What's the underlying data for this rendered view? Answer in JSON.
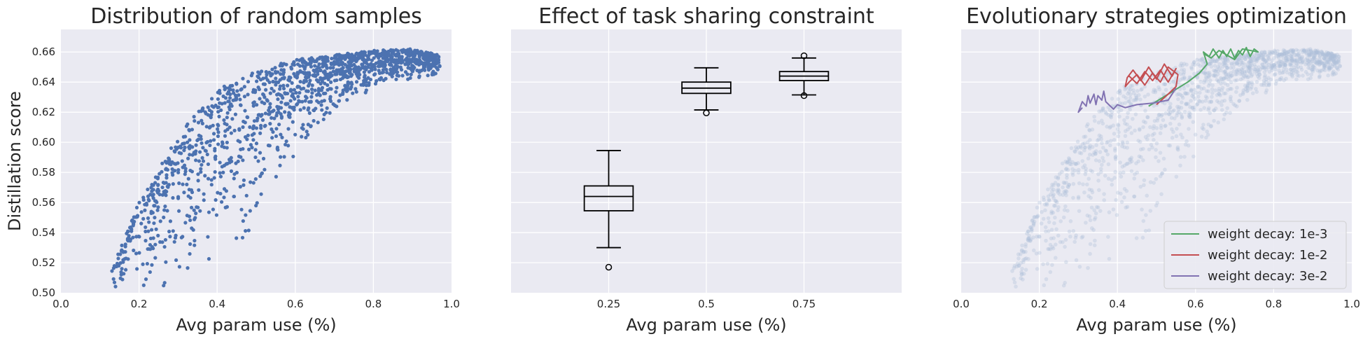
{
  "figure": {
    "ylabel": "Distillation score",
    "colors": {
      "panel_bg": "#eaeaf2",
      "grid": "#ffffff",
      "scatter": "#4c72b0",
      "faded_scatter": "#b0c0da",
      "text": "#262626"
    }
  },
  "chart_data": [
    {
      "type": "scatter",
      "title": "Distribution of random samples",
      "xlabel": "Avg param use (%)",
      "ylabel": "Distillation score",
      "xlim": [
        0.0,
        1.0
      ],
      "ylim": [
        0.5,
        0.675
      ],
      "xticks": [
        "0.0",
        "0.2",
        "0.4",
        "0.6",
        "0.8",
        "1.0"
      ],
      "yticks": [
        "0.50",
        "0.52",
        "0.54",
        "0.56",
        "0.58",
        "0.60",
        "0.62",
        "0.64",
        "0.66"
      ],
      "grid": true,
      "point_cloud": {
        "approx_count": 1500,
        "x_range": [
          0.13,
          0.97
        ],
        "note_shape": "score rises from ~0.50 at x=0.15 to ~0.65 plateau beyond x=0.7",
        "upper_envelope": [
          [
            0.13,
            0.52
          ],
          [
            0.2,
            0.56
          ],
          [
            0.3,
            0.605
          ],
          [
            0.4,
            0.635
          ],
          [
            0.5,
            0.648
          ],
          [
            0.6,
            0.655
          ],
          [
            0.7,
            0.658
          ],
          [
            0.8,
            0.661
          ],
          [
            0.9,
            0.662
          ],
          [
            0.97,
            0.658
          ]
        ],
        "lower_envelope": [
          [
            0.13,
            0.5
          ],
          [
            0.2,
            0.5
          ],
          [
            0.3,
            0.5
          ],
          [
            0.4,
            0.52
          ],
          [
            0.5,
            0.53
          ],
          [
            0.6,
            0.59
          ],
          [
            0.7,
            0.62
          ],
          [
            0.8,
            0.635
          ],
          [
            0.9,
            0.64
          ],
          [
            0.97,
            0.645
          ]
        ]
      }
    },
    {
      "type": "box",
      "title": "Effect of task sharing constraint",
      "xlabel": "Avg param use (%)",
      "ylim": [
        0.5,
        0.675
      ],
      "categories": [
        "0.25",
        "0.5",
        "0.75"
      ],
      "boxes": [
        {
          "category": "0.25",
          "whisker_low": 0.53,
          "q1": 0.5545,
          "median": 0.564,
          "q3": 0.571,
          "whisker_high": 0.5945,
          "outliers": [
            0.517
          ]
        },
        {
          "category": "0.5",
          "whisker_low": 0.6215,
          "q1": 0.6325,
          "median": 0.636,
          "q3": 0.64,
          "whisker_high": 0.6495,
          "outliers": [
            0.6195
          ]
        },
        {
          "category": "0.75",
          "whisker_low": 0.6315,
          "q1": 0.641,
          "median": 0.644,
          "q3": 0.647,
          "whisker_high": 0.656,
          "outliers": [
            0.6575,
            0.631
          ]
        }
      ],
      "grid": true
    },
    {
      "type": "line",
      "title": "Evolutionary strategies optimization",
      "xlabel": "Avg param use (%)",
      "xlim": [
        0.0,
        1.0
      ],
      "ylim": [
        0.5,
        0.675
      ],
      "xticks": [
        "0.0",
        "0.2",
        "0.4",
        "0.6",
        "0.8",
        "1.0"
      ],
      "background_scatter": "faded copy of random samples",
      "legend": {
        "placement": "lower-right"
      },
      "series": [
        {
          "name": "weight decay: 1e-3",
          "color": "#55a868",
          "points": [
            [
              0.48,
              0.624
            ],
            [
              0.53,
              0.632
            ],
            [
              0.58,
              0.64
            ],
            [
              0.61,
              0.646
            ],
            [
              0.63,
              0.652
            ],
            [
              0.62,
              0.66
            ],
            [
              0.635,
              0.657
            ],
            [
              0.645,
              0.662
            ],
            [
              0.66,
              0.656
            ],
            [
              0.67,
              0.661
            ],
            [
              0.68,
              0.657
            ],
            [
              0.69,
              0.662
            ],
            [
              0.7,
              0.656
            ],
            [
              0.71,
              0.661
            ],
            [
              0.72,
              0.658
            ],
            [
              0.73,
              0.663
            ],
            [
              0.74,
              0.657
            ],
            [
              0.75,
              0.662
            ],
            [
              0.76,
              0.66
            ],
            [
              0.72,
              0.662
            ],
            [
              0.7,
              0.655
            ],
            [
              0.66,
              0.661
            ],
            [
              0.64,
              0.656
            ],
            [
              0.62,
              0.659
            ]
          ]
        },
        {
          "name": "weight decay: 1e-2",
          "color": "#c44e52",
          "points": [
            [
              0.5,
              0.625
            ],
            [
              0.53,
              0.632
            ],
            [
              0.55,
              0.637
            ],
            [
              0.555,
              0.645
            ],
            [
              0.53,
              0.65
            ],
            [
              0.51,
              0.64
            ],
            [
              0.49,
              0.646
            ],
            [
              0.47,
              0.638
            ],
            [
              0.45,
              0.645
            ],
            [
              0.43,
              0.64
            ],
            [
              0.42,
              0.637
            ],
            [
              0.425,
              0.643
            ],
            [
              0.44,
              0.648
            ],
            [
              0.46,
              0.641
            ],
            [
              0.48,
              0.65
            ],
            [
              0.5,
              0.642
            ],
            [
              0.52,
              0.652
            ],
            [
              0.54,
              0.644
            ],
            [
              0.55,
              0.649
            ],
            [
              0.53,
              0.64
            ],
            [
              0.51,
              0.648
            ],
            [
              0.49,
              0.641
            ],
            [
              0.47,
              0.647
            ],
            [
              0.45,
              0.639
            ],
            [
              0.43,
              0.644
            ]
          ]
        },
        {
          "name": "weight decay: 3e-2",
          "color": "#8172b2",
          "points": [
            [
              0.55,
              0.636
            ],
            [
              0.53,
              0.628
            ],
            [
              0.49,
              0.626
            ],
            [
              0.45,
              0.625
            ],
            [
              0.42,
              0.623
            ],
            [
              0.4,
              0.625
            ],
            [
              0.39,
              0.622
            ],
            [
              0.37,
              0.627
            ],
            [
              0.365,
              0.634
            ],
            [
              0.36,
              0.628
            ],
            [
              0.35,
              0.631
            ],
            [
              0.345,
              0.625
            ],
            [
              0.34,
              0.632
            ],
            [
              0.33,
              0.626
            ],
            [
              0.325,
              0.631
            ],
            [
              0.32,
              0.624
            ],
            [
              0.31,
              0.627
            ],
            [
              0.3,
              0.62
            ],
            [
              0.31,
              0.623
            ]
          ]
        }
      ]
    }
  ]
}
